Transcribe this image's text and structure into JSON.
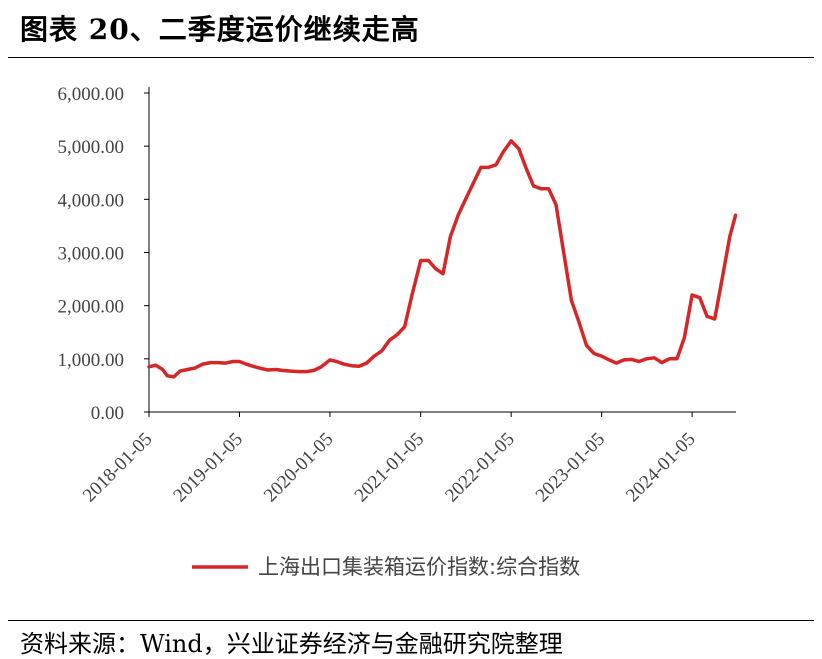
{
  "header": {
    "title": "图表 20、二季度运价继续走高"
  },
  "footer": {
    "source": "资料来源：Wind，兴业证券经济与金融研究院整理"
  },
  "chart_data": {
    "type": "line",
    "title": "图表 20、二季度运价继续走高",
    "xlabel": "",
    "ylabel": "",
    "ylim": [
      0,
      6000
    ],
    "xlim": [
      "2018-01-05",
      "2024-06-30"
    ],
    "yticks": [
      "0.00",
      "1,000.00",
      "2,000.00",
      "3,000.00",
      "4,000.00",
      "5,000.00",
      "6,000.00"
    ],
    "ytick_values": [
      0,
      1000,
      2000,
      3000,
      4000,
      5000,
      6000
    ],
    "xticks": [
      "2018-01-05",
      "2019-01-05",
      "2020-01-05",
      "2021-01-05",
      "2022-01-05",
      "2023-01-05",
      "2024-01-05"
    ],
    "legend_position": "bottom",
    "grid": false,
    "series": [
      {
        "name": "上海出口集装箱运价指数:综合指数",
        "color": "#d62728",
        "points": [
          [
            "2018-01-05",
            850
          ],
          [
            "2018-02-01",
            880
          ],
          [
            "2018-03-01",
            800
          ],
          [
            "2018-03-20",
            680
          ],
          [
            "2018-04-15",
            660
          ],
          [
            "2018-05-10",
            770
          ],
          [
            "2018-06-10",
            800
          ],
          [
            "2018-07-10",
            830
          ],
          [
            "2018-08-10",
            900
          ],
          [
            "2018-09-10",
            930
          ],
          [
            "2018-10-10",
            930
          ],
          [
            "2018-11-10",
            920
          ],
          [
            "2018-12-10",
            950
          ],
          [
            "2019-01-05",
            950
          ],
          [
            "2019-02-01",
            900
          ],
          [
            "2019-03-01",
            860
          ],
          [
            "2019-04-01",
            820
          ],
          [
            "2019-05-01",
            790
          ],
          [
            "2019-06-01",
            800
          ],
          [
            "2019-07-01",
            780
          ],
          [
            "2019-08-01",
            770
          ],
          [
            "2019-09-01",
            760
          ],
          [
            "2019-10-01",
            760
          ],
          [
            "2019-11-01",
            780
          ],
          [
            "2019-12-01",
            850
          ],
          [
            "2020-01-05",
            980
          ],
          [
            "2020-02-01",
            950
          ],
          [
            "2020-03-01",
            900
          ],
          [
            "2020-04-01",
            870
          ],
          [
            "2020-05-01",
            860
          ],
          [
            "2020-06-01",
            920
          ],
          [
            "2020-07-01",
            1050
          ],
          [
            "2020-08-01",
            1150
          ],
          [
            "2020-09-01",
            1350
          ],
          [
            "2020-10-01",
            1450
          ],
          [
            "2020-11-01",
            1600
          ],
          [
            "2020-12-01",
            2200
          ],
          [
            "2021-01-05",
            2850
          ],
          [
            "2021-02-05",
            2850
          ],
          [
            "2021-03-05",
            2700
          ],
          [
            "2021-04-05",
            2600
          ],
          [
            "2021-05-05",
            3300
          ],
          [
            "2021-06-05",
            3700
          ],
          [
            "2021-07-05",
            4000
          ],
          [
            "2021-08-05",
            4300
          ],
          [
            "2021-09-05",
            4600
          ],
          [
            "2021-10-05",
            4600
          ],
          [
            "2021-11-05",
            4650
          ],
          [
            "2021-12-05",
            4900
          ],
          [
            "2022-01-05",
            5100
          ],
          [
            "2022-02-05",
            4950
          ],
          [
            "2022-03-05",
            4600
          ],
          [
            "2022-04-05",
            4250
          ],
          [
            "2022-05-05",
            4200
          ],
          [
            "2022-06-05",
            4200
          ],
          [
            "2022-07-05",
            3900
          ],
          [
            "2022-08-05",
            3000
          ],
          [
            "2022-09-05",
            2100
          ],
          [
            "2022-10-05",
            1700
          ],
          [
            "2022-11-05",
            1250
          ],
          [
            "2022-12-05",
            1100
          ],
          [
            "2023-01-05",
            1050
          ],
          [
            "2023-02-05",
            980
          ],
          [
            "2023-03-05",
            920
          ],
          [
            "2023-04-05",
            980
          ],
          [
            "2023-05-05",
            990
          ],
          [
            "2023-06-05",
            950
          ],
          [
            "2023-07-05",
            1000
          ],
          [
            "2023-08-05",
            1020
          ],
          [
            "2023-09-05",
            930
          ],
          [
            "2023-10-05",
            1000
          ],
          [
            "2023-11-05",
            1000
          ],
          [
            "2023-12-05",
            1400
          ],
          [
            "2024-01-05",
            2200
          ],
          [
            "2024-02-05",
            2150
          ],
          [
            "2024-03-05",
            1800
          ],
          [
            "2024-04-05",
            1750
          ],
          [
            "2024-05-05",
            2500
          ],
          [
            "2024-06-05",
            3300
          ],
          [
            "2024-06-28",
            3700
          ]
        ]
      }
    ]
  }
}
